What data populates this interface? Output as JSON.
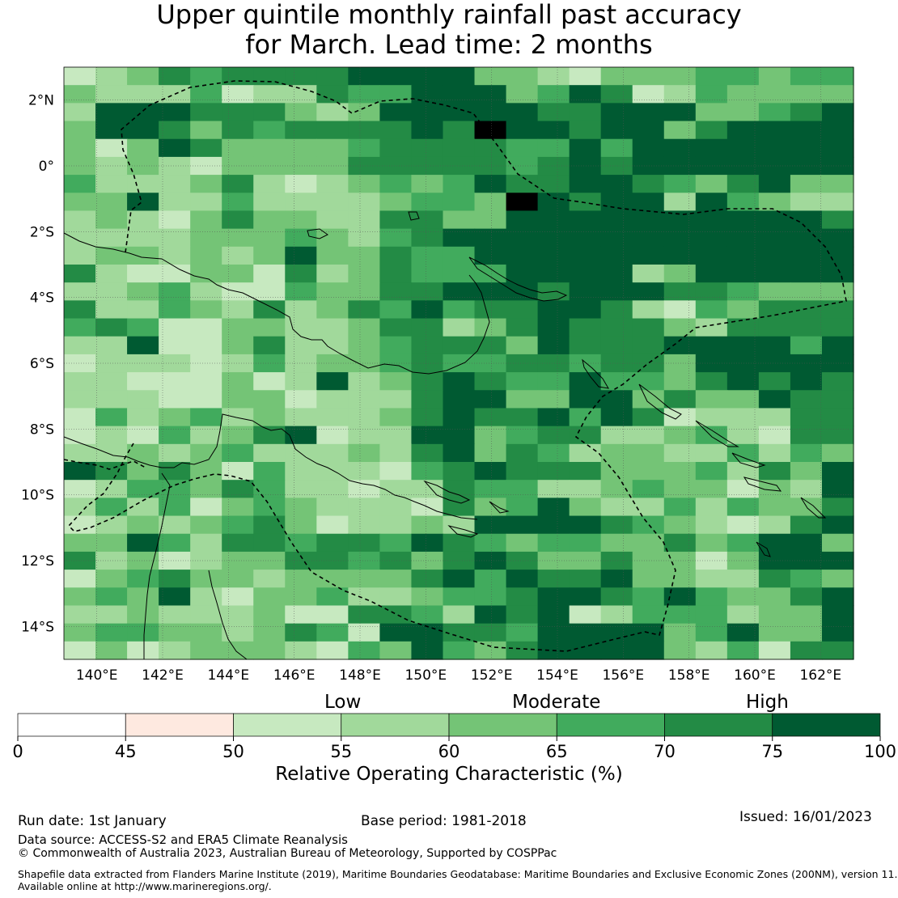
{
  "title_line1": "Upper quintile monthly rainfall past accuracy",
  "title_line2": "for March. Lead time: 2 months",
  "map": {
    "lon_range": [
      139,
      163
    ],
    "lat_range": [
      -15,
      3
    ],
    "lon_ticks": [
      "140°E",
      "142°E",
      "144°E",
      "146°E",
      "148°E",
      "150°E",
      "152°E",
      "154°E",
      "156°E",
      "158°E",
      "160°E",
      "162°E"
    ],
    "lat_ticks": [
      "2°N",
      "0°",
      "2°S",
      "4°S",
      "6°S",
      "8°S",
      "10°S",
      "12°S",
      "14°S"
    ],
    "cell_rows": [
      "1235455556666332133344344",
      "3222412254466634651243333",
      "2666555323666665566633456",
      "3665354555565766566356666",
      "3136533334555544646666666",
      "3232133335555545656666666",
      "4222352123434655665435633",
      "3362242222344376566264322",
      "2321353322553366666666665",
      "2222333432456666666666666",
      "2332323633544666666666666",
      "5211331523544466662366666",
      "2234211433556665666554333",
      "5224325235464556652143555",
      "4541133223552356555325555",
      "2261135223455536555666646",
      "1222124233454455455366666",
      "2211131262356544644356565",
      "2221133122256633663533655",
      "1423423222356556465122255",
      "1214235612266345522342155",
      "2232342223256354233224243",
      "6535314222145655533342536",
      "1244354221225442234331326",
      "2424134322215346322424335",
      "1232345312232666654321256",
      "3364255455465434433534663",
      "5231233554535653353313666",
      "1345332333356465563322543",
      "3436213342234456654643356",
      "2232223115542656124442336",
      "3443323541665546666346336",
      "1312333214364356666324155"
    ]
  },
  "colorbar": {
    "colors": [
      "#ffffff",
      "#fee9e0",
      "#c7e9c0",
      "#a1d99b",
      "#74c476",
      "#41ab5d",
      "#238b45",
      "#005a32"
    ],
    "tick_labels": [
      "0",
      "45",
      "50",
      "55",
      "60",
      "65",
      "70",
      "75",
      "100"
    ],
    "categories": [
      "Low",
      "Moderate",
      "High"
    ],
    "label": "Relative Operating Characteristic (%)"
  },
  "footer": {
    "run_date": "Run date: 1st January",
    "base_period": "Base period: 1981-2018",
    "issued": "Issued: 16/01/2023",
    "data_source": "Data source: ACCESS-S2 and ERA5 Climate Reanalysis",
    "copyright": "© Commonwealth of Australia 2023, Australian Bureau of Meteorology, Supported by COSPPac",
    "shapefile_line1": "Shapefile data extracted from Flanders Marine Institute (2019), Maritime Boundaries Geodatabase: Maritime Boundaries and Exclusive Economic Zones (200NM), version 11.",
    "shapefile_line2": "Available online at http://www.marineregions.org/."
  }
}
